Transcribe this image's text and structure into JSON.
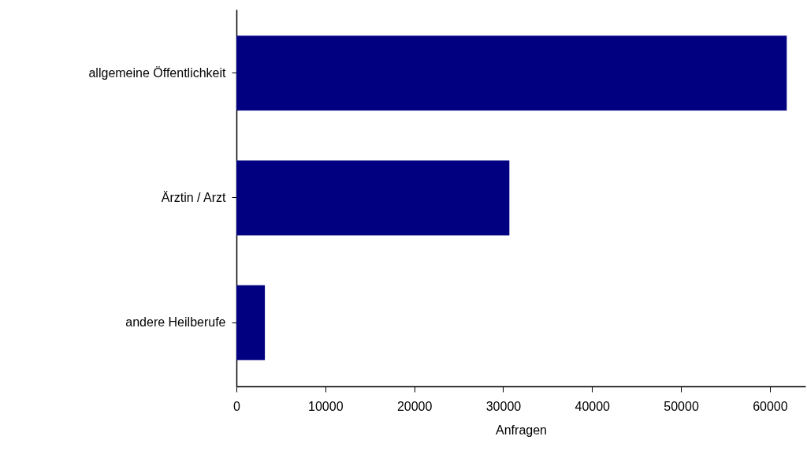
{
  "chart_data": {
    "type": "bar",
    "orientation": "horizontal",
    "xlabel": "Anfragen",
    "categories": [
      "allgemeine Öffentlichkeit",
      "Ärztin / Arzt",
      "andere Heilberufe"
    ],
    "values": [
      61900,
      30700,
      3200
    ],
    "color": "#000080",
    "xlim": [
      0,
      64000
    ],
    "xticks": [
      0,
      10000,
      20000,
      30000,
      40000,
      50000,
      60000
    ],
    "grid": false
  }
}
